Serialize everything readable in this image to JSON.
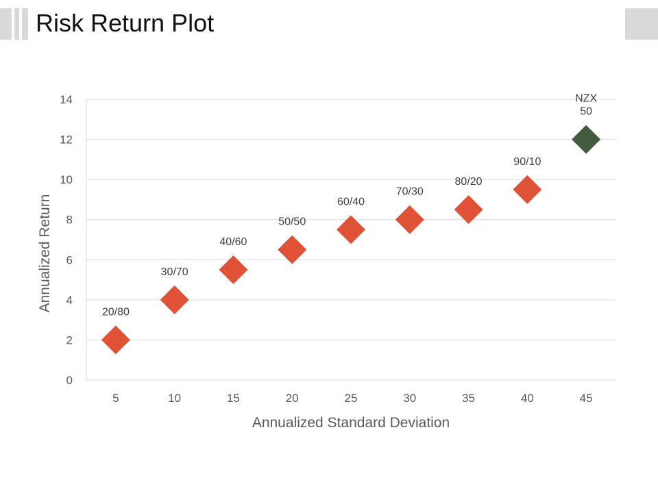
{
  "slide": {
    "title": "Risk Return Plot",
    "accent_color": "#d9d9d9"
  },
  "chart_data": {
    "type": "scatter",
    "title": "",
    "xlabel": "Annualized Standard Deviation",
    "ylabel": "Annualized Return",
    "x_ticks": [
      5,
      10,
      15,
      20,
      25,
      30,
      35,
      40,
      45
    ],
    "y_ticks": [
      0,
      2,
      4,
      6,
      8,
      10,
      12,
      14
    ],
    "xlim": [
      2.5,
      47.5
    ],
    "ylim": [
      0,
      14
    ],
    "grid": "horizontal",
    "marker": "diamond",
    "points": [
      {
        "x": 5,
        "y": 2,
        "label": "20/80",
        "color": "#e05236"
      },
      {
        "x": 10,
        "y": 4,
        "label": "30/70",
        "color": "#e05236"
      },
      {
        "x": 15,
        "y": 5.5,
        "label": "40/60",
        "color": "#e05236"
      },
      {
        "x": 20,
        "y": 6.5,
        "label": "50/50",
        "color": "#e05236"
      },
      {
        "x": 25,
        "y": 7.5,
        "label": "60/40",
        "color": "#e05236"
      },
      {
        "x": 30,
        "y": 8,
        "label": "70/30",
        "color": "#e05236"
      },
      {
        "x": 35,
        "y": 8.5,
        "label": "80/20",
        "color": "#e05236"
      },
      {
        "x": 40,
        "y": 9.5,
        "label": "90/10",
        "color": "#e05236"
      },
      {
        "x": 45,
        "y": 12,
        "label": "NZX 50",
        "label_lines": [
          "NZX",
          "50"
        ],
        "color": "#435a40"
      }
    ]
  }
}
